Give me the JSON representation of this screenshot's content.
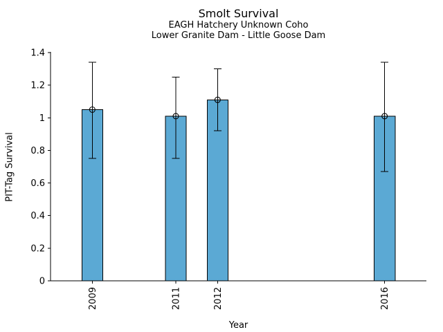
{
  "chart_data": {
    "type": "bar",
    "title": "Smolt Survival",
    "subtitle_line1": "EAGH Hatchery Unknown Coho",
    "subtitle_line2": "Lower Granite Dam - Little Goose Dam",
    "xlabel": "Year",
    "ylabel": "PIT-Tag Survival",
    "categories": [
      "2009",
      "2011",
      "2012",
      "2016"
    ],
    "x_values": [
      2009,
      2011,
      2012,
      2016
    ],
    "values": [
      1.05,
      1.01,
      1.11,
      1.01
    ],
    "error_low": [
      0.75,
      0.75,
      0.92,
      0.67
    ],
    "error_high": [
      1.34,
      1.25,
      1.3,
      1.34
    ],
    "xlim": [
      2008,
      2017
    ],
    "ylim": [
      0,
      1.4
    ],
    "yticks": [
      {
        "v": 0,
        "label": "0"
      },
      {
        "v": 0.2,
        "label": "0.2"
      },
      {
        "v": 0.4,
        "label": "0.4"
      },
      {
        "v": 0.6,
        "label": "0.6"
      },
      {
        "v": 0.8,
        "label": "0.8"
      },
      {
        "v": 1,
        "label": "1"
      },
      {
        "v": 1.2,
        "label": "1.2"
      },
      {
        "v": 1.4,
        "label": "1.4"
      }
    ],
    "bar_width_years": 0.5,
    "marker": "open-circle",
    "grid": false,
    "legend": false,
    "colors": {
      "bar_fill": "#5BA9D4",
      "bar_edge": "#000000",
      "error_bar": "#000000",
      "axis": "#000000",
      "text": "#000000",
      "background": "#FFFFFF"
    }
  }
}
